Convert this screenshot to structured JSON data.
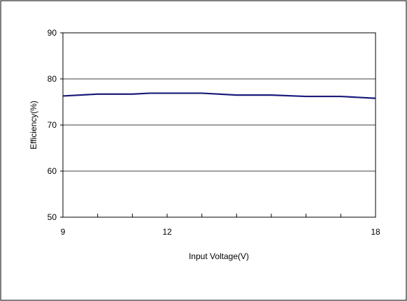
{
  "chart_data": {
    "type": "line",
    "xlabel": "Input Voltage(V)",
    "ylabel": "Efficiency(%)",
    "xlim": [
      9,
      18
    ],
    "ylim": [
      50,
      90
    ],
    "x_ticks": [
      9,
      12,
      18
    ],
    "y_ticks": [
      50,
      60,
      70,
      80,
      90
    ],
    "x_minor_ticks": [
      9,
      10,
      11,
      12,
      13,
      14,
      15,
      16,
      17,
      18
    ],
    "grid": "horizontal",
    "legend": "none",
    "series": [
      {
        "color": "#1a1a7a",
        "x": [
          9,
          10,
          11,
          11.5,
          12,
          13,
          14,
          15,
          16,
          17,
          18
        ],
        "y": [
          76.3,
          76.7,
          76.7,
          76.9,
          76.9,
          76.9,
          76.5,
          76.5,
          76.2,
          76.2,
          75.8
        ]
      }
    ]
  }
}
